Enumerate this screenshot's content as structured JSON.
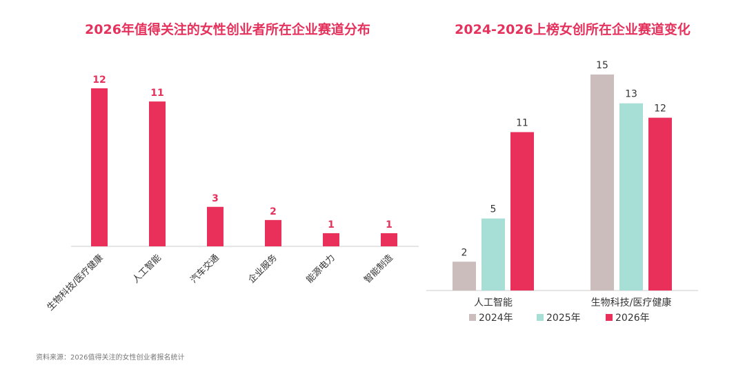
{
  "source_note": "资料来源：2026值得关注的女性创业者报名统计",
  "colors": {
    "title": "#e5325d",
    "bar_2026": "#e8305b",
    "bar_2024": "#cbbdbb",
    "bar_2025": "#a7dfd6",
    "axis": "#cccccc"
  },
  "chart_data": [
    {
      "type": "bar",
      "title": "2026年值得关注的女性创业者所在企业赛道分布",
      "categories": [
        "生物科技/医疗健康",
        "人工智能",
        "汽车交通",
        "企业服务",
        "能源电力",
        "智能制造"
      ],
      "values": [
        12,
        11,
        3,
        2,
        1,
        1
      ],
      "ylim": [
        0,
        12
      ],
      "grid": false,
      "data_labels": true
    },
    {
      "type": "bar",
      "title": "2024-2026上榜女创所在企业赛道变化",
      "categories": [
        "人工智能",
        "生物科技/医疗健康"
      ],
      "series": [
        {
          "name": "2024年",
          "values": [
            2,
            15
          ]
        },
        {
          "name": "2025年",
          "values": [
            5,
            13
          ]
        },
        {
          "name": "2026年",
          "values": [
            11,
            12
          ]
        }
      ],
      "ylim": [
        0,
        15
      ],
      "grid": false,
      "data_labels": true,
      "legend_position": "bottom"
    }
  ]
}
